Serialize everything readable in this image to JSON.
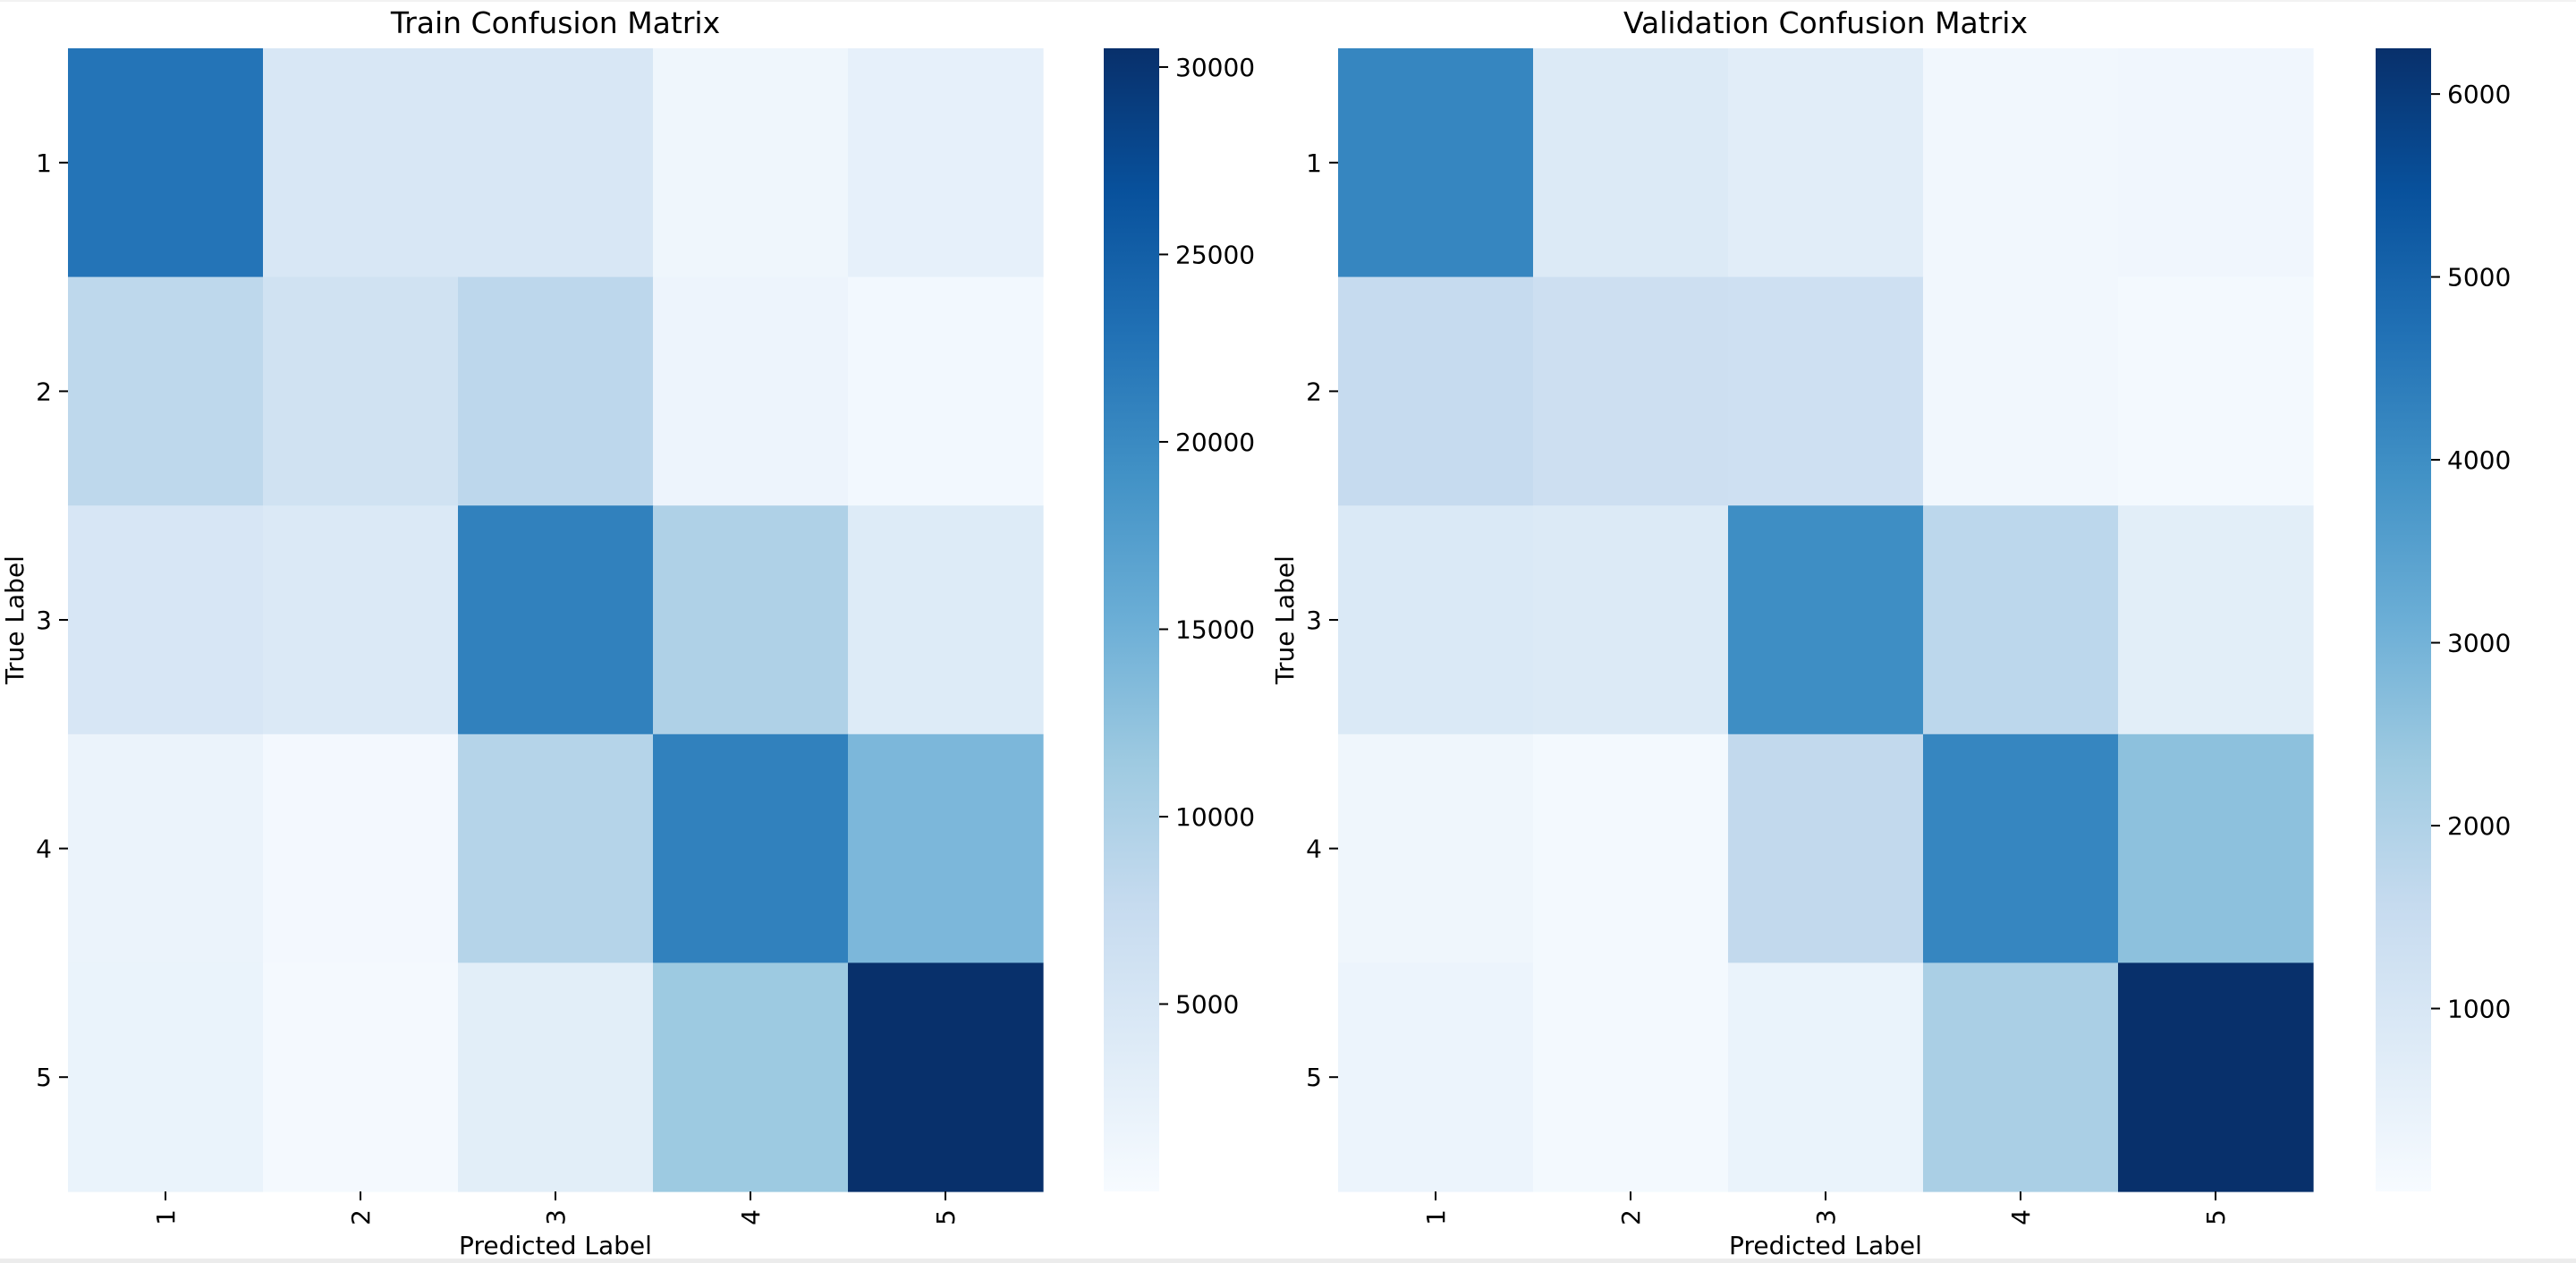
{
  "chart_data": [
    {
      "type": "heatmap",
      "title": "Train Confusion Matrix",
      "xlabel": "Predicted Label",
      "ylabel": "True Label",
      "x_categories": [
        "1",
        "2",
        "3",
        "4",
        "5"
      ],
      "y_categories": [
        "1",
        "2",
        "3",
        "4",
        "5"
      ],
      "values": [
        [
          22500,
          4800,
          4800,
          1200,
          2600
        ],
        [
          8400,
          6000,
          8500,
          1600,
          700
        ],
        [
          5000,
          4300,
          21000,
          9800,
          3900
        ],
        [
          1800,
          600,
          9200,
          21000,
          14000
        ],
        [
          2000,
          500,
          3200,
          11500,
          30500
        ]
      ],
      "colorbar": {
        "min": 0,
        "max": 30500,
        "ticks": [
          5000,
          10000,
          15000,
          20000,
          25000,
          30000
        ],
        "tick_labels": [
          "5000",
          "10000",
          "15000",
          "20000",
          "25000",
          "30000"
        ]
      },
      "colormap": "Blues"
    },
    {
      "type": "heatmap",
      "title": "Validation Confusion Matrix",
      "xlabel": "Predicted Label",
      "ylabel": "True Label",
      "x_categories": [
        "1",
        "2",
        "3",
        "4",
        "5"
      ],
      "y_categories": [
        "1",
        "2",
        "3",
        "4",
        "5"
      ],
      "values": [
        [
          4200,
          850,
          700,
          180,
          230
        ],
        [
          1550,
          1350,
          1300,
          200,
          120
        ],
        [
          900,
          850,
          4000,
          1750,
          650
        ],
        [
          250,
          120,
          1650,
          4200,
          2600
        ],
        [
          330,
          120,
          400,
          2100,
          6250
        ]
      ],
      "colorbar": {
        "min": 0,
        "max": 6250,
        "ticks": [
          1000,
          2000,
          3000,
          4000,
          5000,
          6000
        ],
        "tick_labels": [
          "1000",
          "2000",
          "3000",
          "4000",
          "5000",
          "6000"
        ]
      },
      "colormap": "Blues"
    }
  ]
}
